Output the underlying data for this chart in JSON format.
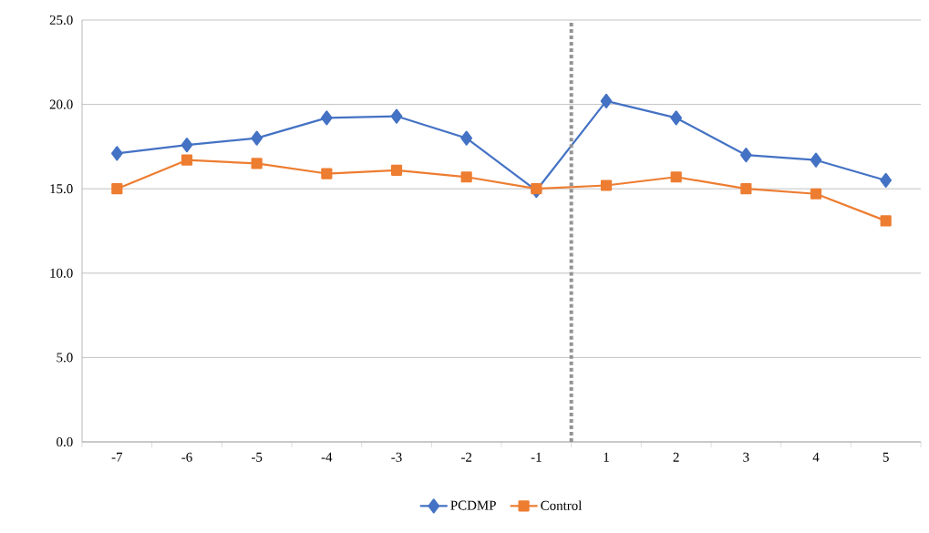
{
  "chart_data": {
    "type": "line",
    "categories": [
      "-7",
      "-6",
      "-5",
      "-4",
      "-3",
      "-2",
      "-1",
      "1",
      "2",
      "3",
      "4",
      "5"
    ],
    "series": [
      {
        "name": "PCDMP",
        "color": "#4472c4",
        "marker": "diamond",
        "values": [
          17.1,
          17.6,
          18.0,
          19.2,
          19.3,
          18.0,
          14.9,
          20.2,
          19.2,
          17.0,
          16.7,
          15.5
        ]
      },
      {
        "name": "Control",
        "color": "#ed7d31",
        "marker": "square",
        "values": [
          15.0,
          16.7,
          16.5,
          15.9,
          16.1,
          15.7,
          15.0,
          15.2,
          15.7,
          15.0,
          14.7,
          13.1
        ]
      }
    ],
    "ylim": [
      0,
      25
    ],
    "yticks": [
      {
        "value": 0,
        "label": "0.0"
      },
      {
        "value": 5,
        "label": "5.0"
      },
      {
        "value": 10,
        "label": "10.0"
      },
      {
        "value": 15,
        "label": "15.0"
      },
      {
        "value": 20,
        "label": "20.0"
      },
      {
        "value": 25,
        "label": "25.0"
      }
    ],
    "grid": "y",
    "legend": "bottom",
    "line_style": "solid"
  }
}
